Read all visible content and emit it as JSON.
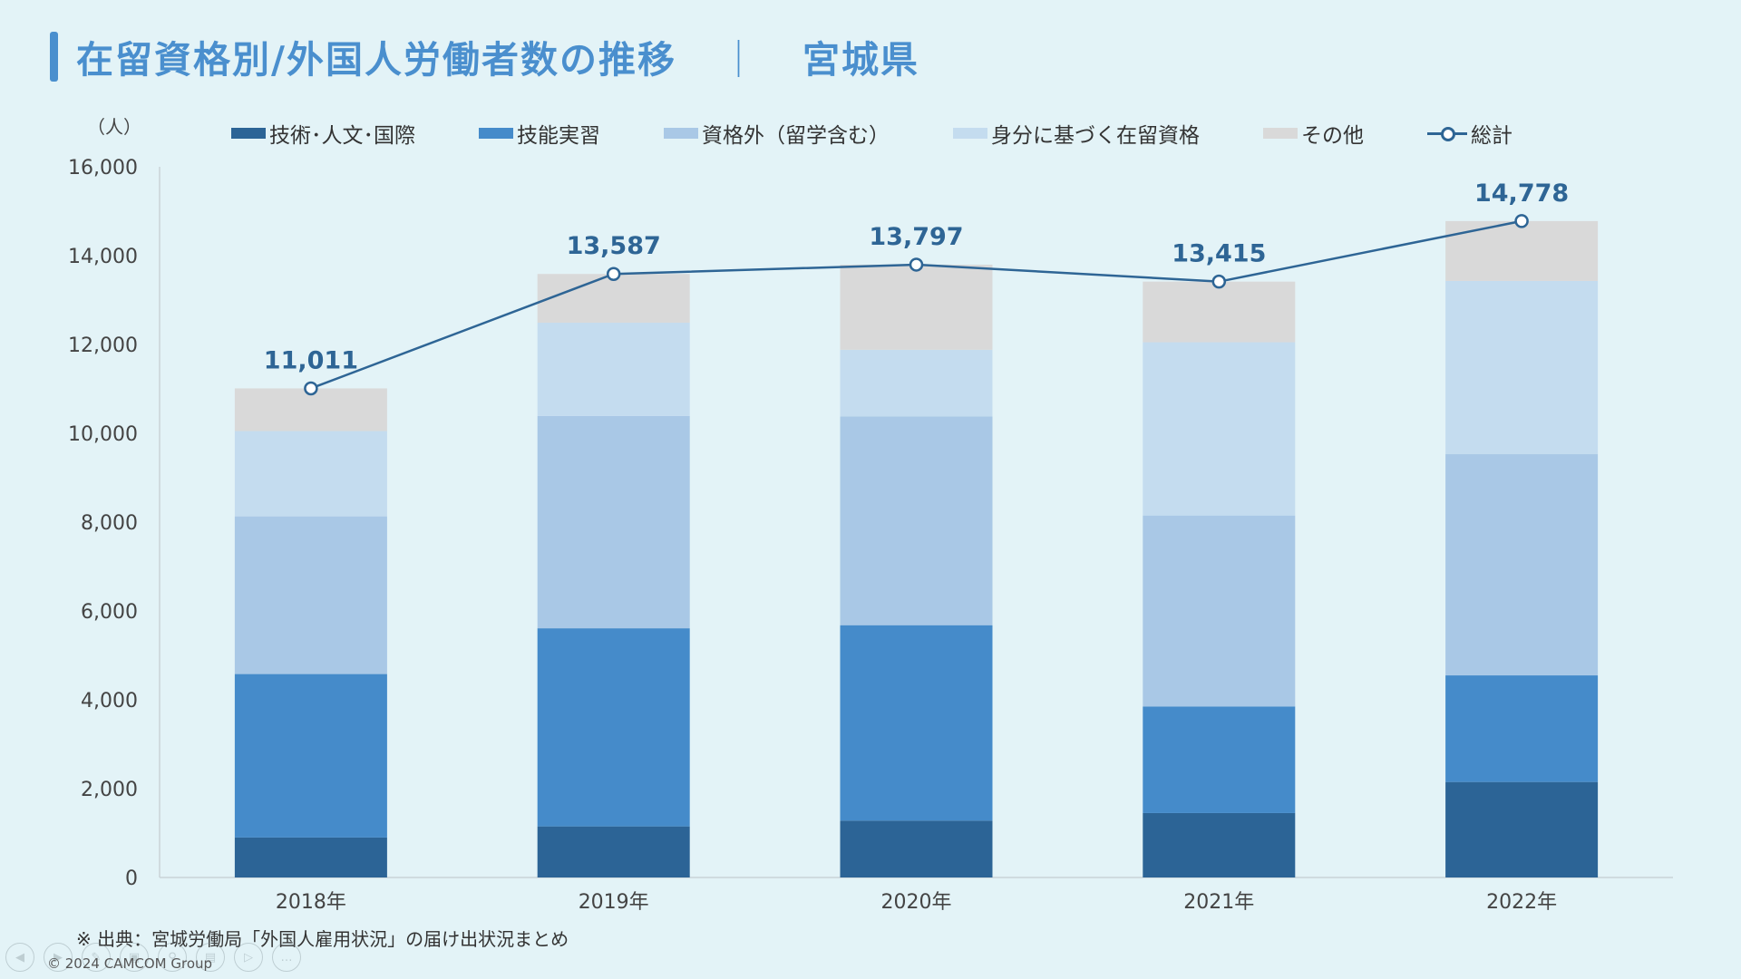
{
  "title": {
    "main": "在留資格別/外国人労働者数の推移",
    "separator": "｜",
    "region": "宮城県"
  },
  "unit_label": "（人）",
  "legend": [
    {
      "label": "技術･人文･国際",
      "color": "#2c6496",
      "kind": "bar"
    },
    {
      "label": "技能実習",
      "color": "#458bca",
      "kind": "bar"
    },
    {
      "label": "資格外（留学含む）",
      "color": "#a9c8e6",
      "kind": "bar"
    },
    {
      "label": "身分に基づく在留資格",
      "color": "#c4dcef",
      "kind": "bar"
    },
    {
      "label": "その他",
      "color": "#d9d9d9",
      "kind": "bar"
    },
    {
      "label": "総計",
      "color": "#2e6595",
      "kind": "line"
    }
  ],
  "chart_data": {
    "type": "bar",
    "stacked": true,
    "categories": [
      "2018年",
      "2019年",
      "2020年",
      "2021年",
      "2022年"
    ],
    "series": [
      {
        "name": "技術･人文･国際",
        "color": "#2c6496",
        "values": [
          900,
          1150,
          1280,
          1450,
          2150
        ]
      },
      {
        "name": "技能実習",
        "color": "#458bca",
        "values": [
          3680,
          4460,
          4400,
          2400,
          2400
        ]
      },
      {
        "name": "資格外（留学含む）",
        "color": "#a9c8e6",
        "values": [
          3550,
          4780,
          4700,
          4300,
          4980
        ]
      },
      {
        "name": "身分に基づく在留資格",
        "color": "#c4dcef",
        "values": [
          1920,
          2100,
          1500,
          3900,
          3900
        ]
      },
      {
        "name": "その他",
        "color": "#d9d9d9",
        "values": [
          961,
          1097,
          1917,
          1365,
          1348
        ]
      }
    ],
    "total": {
      "name": "総計",
      "color": "#2e6595",
      "values": [
        11011,
        13587,
        13797,
        13415,
        14778
      ],
      "labels": [
        "11,011",
        "13,587",
        "13,797",
        "13,415",
        "14,778"
      ]
    },
    "ylim": [
      0,
      16000
    ],
    "yticks": [
      0,
      2000,
      4000,
      6000,
      8000,
      10000,
      12000,
      14000,
      16000
    ],
    "ytick_labels": [
      "0",
      "2,000",
      "4,000",
      "6,000",
      "8,000",
      "10,000",
      "12,000",
      "14,000",
      "16,000"
    ],
    "ylabel": "（人）",
    "xlabel": "",
    "grid": false,
    "legend_position": "top"
  },
  "source_note": "※ 出典：宮城労働局「外国人雇用状況」の届け出状況まとめ",
  "copyright": "© 2024 CAMCOM Group",
  "nav_icons": [
    "prev-icon",
    "next-icon",
    "pen-icon",
    "slides-icon",
    "zoom-icon",
    "subtitle-icon",
    "video-icon",
    "more-icon"
  ]
}
